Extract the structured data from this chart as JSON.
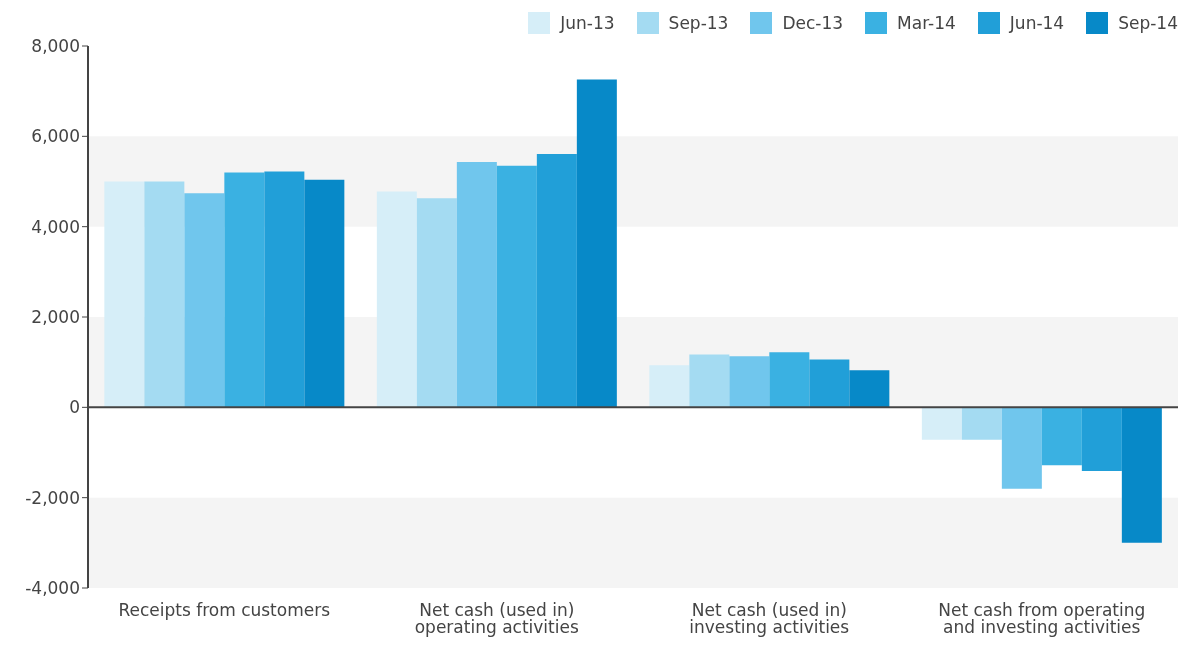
{
  "chart_data": {
    "type": "bar",
    "categories": [
      "Receipts from customers",
      "Net cash (used in) operating activities",
      "Net cash (used in) investing activities",
      "Net cash from operating and investing activities"
    ],
    "series": [
      {
        "name": "Jun-13",
        "color": "#d6eef8",
        "values": [
          5000,
          4780,
          930,
          -720
        ]
      },
      {
        "name": "Sep-13",
        "color": "#a4dbf2",
        "values": [
          5000,
          4630,
          1170,
          -720
        ]
      },
      {
        "name": "Dec-13",
        "color": "#70c6ed",
        "values": [
          4740,
          5430,
          1130,
          -1800
        ]
      },
      {
        "name": "Mar-14",
        "color": "#3ab1e2",
        "values": [
          5200,
          5350,
          1220,
          -1280
        ]
      },
      {
        "name": "Jun-14",
        "color": "#219fd8",
        "values": [
          5220,
          5610,
          1060,
          -1410
        ]
      },
      {
        "name": "Sep-14",
        "color": "#0789c8",
        "values": [
          5040,
          7260,
          820,
          -3000
        ]
      }
    ],
    "ylim": [
      -4000,
      8000
    ],
    "yticks": [
      {
        "value": -4000,
        "label": "-4,000"
      },
      {
        "value": -2000,
        "label": "-2,000"
      },
      0,
      {
        "value": 2000,
        "label": "2,000"
      },
      {
        "value": 4000,
        "label": "4,000"
      },
      {
        "value": 6000,
        "label": "6,000"
      },
      {
        "value": 8000,
        "label": "8,000"
      }
    ],
    "grid": "y",
    "legend": "top right"
  }
}
